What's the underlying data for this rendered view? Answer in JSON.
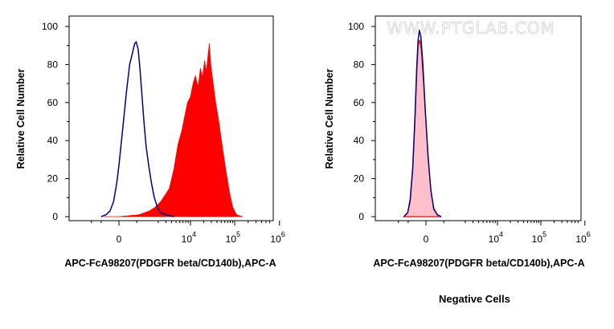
{
  "watermark": "WWW.PTGLAB.COM",
  "caption": "Negative Cells",
  "colors": {
    "stained_fill": "#ff0000",
    "control_line": "#000080",
    "negative_fill": "#ffc0cb",
    "negative_line": "#ff0000"
  },
  "chart_data": [
    {
      "type": "area",
      "xlabel": "APC-FcA98207(PDGFR beta/CD140b),APC-A",
      "ylabel": "Relative Cell Number",
      "x_scale": "logicle",
      "x_ticks": [
        {
          "value": 0,
          "base": "0",
          "exp": ""
        },
        {
          "value": 10000,
          "base": "10",
          "exp": "4"
        },
        {
          "value": 100000,
          "base": "10",
          "exp": "5"
        },
        {
          "value": 1000000,
          "base": "10",
          "exp": "6"
        }
      ],
      "y_ticks": [
        0,
        20,
        40,
        60,
        80,
        100
      ],
      "ylim": [
        0,
        100
      ],
      "series": [
        {
          "style": "filled",
          "color": "#ff0000",
          "points": [
            [
              -400,
              0
            ],
            [
              0,
              0
            ],
            [
              600,
              1
            ],
            [
              1200,
              3
            ],
            [
              1700,
              5
            ],
            [
              2300,
              8
            ],
            [
              3000,
              12
            ],
            [
              3600,
              15
            ],
            [
              4500,
              25
            ],
            [
              5500,
              38
            ],
            [
              6600,
              45
            ],
            [
              7500,
              52
            ],
            [
              8700,
              60
            ],
            [
              10000,
              63
            ],
            [
              11500,
              70
            ],
            [
              13000,
              74
            ],
            [
              15000,
              68
            ],
            [
              17000,
              78
            ],
            [
              19000,
              73
            ],
            [
              21000,
              82
            ],
            [
              23000,
              76
            ],
            [
              25000,
              84
            ],
            [
              27000,
              91
            ],
            [
              29000,
              80
            ],
            [
              32000,
              72
            ],
            [
              37000,
              61
            ],
            [
              44000,
              50
            ],
            [
              52000,
              38
            ],
            [
              63000,
              25
            ],
            [
              76000,
              13
            ],
            [
              90000,
              5
            ],
            [
              110000,
              1
            ],
            [
              150000,
              0
            ]
          ]
        },
        {
          "style": "line",
          "color": "#000080",
          "points": [
            [
              -500,
              0
            ],
            [
              -320,
              1
            ],
            [
              -200,
              3
            ],
            [
              -110,
              8
            ],
            [
              -40,
              18
            ],
            [
              0,
              27
            ],
            [
              70,
              45
            ],
            [
              160,
              65
            ],
            [
              250,
              80
            ],
            [
              340,
              86
            ],
            [
              420,
              91
            ],
            [
              480,
              92
            ],
            [
              560,
              88
            ],
            [
              640,
              78
            ],
            [
              740,
              64
            ],
            [
              850,
              50
            ],
            [
              980,
              37
            ],
            [
              1150,
              27
            ],
            [
              1350,
              18
            ],
            [
              1600,
              10
            ],
            [
              1900,
              5
            ],
            [
              2300,
              2
            ],
            [
              3000,
              1
            ],
            [
              4500,
              0
            ]
          ]
        }
      ]
    },
    {
      "type": "area",
      "xlabel": "APC-FcA98207(PDGFR beta/CD140b),APC-A",
      "ylabel": "Relative Cell Number",
      "x_scale": "logicle",
      "x_ticks": [
        {
          "value": 0,
          "base": "0",
          "exp": ""
        },
        {
          "value": 10000,
          "base": "10",
          "exp": "4"
        },
        {
          "value": 100000,
          "base": "10",
          "exp": "5"
        },
        {
          "value": 1000000,
          "base": "10",
          "exp": "6"
        }
      ],
      "y_ticks": [
        0,
        20,
        40,
        60,
        80,
        100
      ],
      "ylim": [
        0,
        100
      ],
      "series": [
        {
          "style": "filled",
          "color": "#ff0000",
          "fill": "#ffc0cb",
          "points": [
            [
              -700,
              0
            ],
            [
              -520,
              2
            ],
            [
              -420,
              8
            ],
            [
              -330,
              25
            ],
            [
              -260,
              50
            ],
            [
              -210,
              75
            ],
            [
              -170,
              90
            ],
            [
              -135,
              93
            ],
            [
              -95,
              88
            ],
            [
              -50,
              72
            ],
            [
              0,
              50
            ],
            [
              50,
              28
            ],
            [
              110,
              12
            ],
            [
              180,
              4
            ],
            [
              280,
              1
            ],
            [
              400,
              0
            ]
          ]
        },
        {
          "style": "line",
          "color": "#000080",
          "points": [
            [
              -700,
              0
            ],
            [
              -520,
              2
            ],
            [
              -420,
              9
            ],
            [
              -330,
              26
            ],
            [
              -260,
              52
            ],
            [
              -210,
              78
            ],
            [
              -170,
              93
            ],
            [
              -140,
              98
            ],
            [
              -105,
              95
            ],
            [
              -60,
              80
            ],
            [
              -10,
              55
            ],
            [
              40,
              32
            ],
            [
              100,
              14
            ],
            [
              170,
              4
            ],
            [
              270,
              1
            ],
            [
              400,
              0
            ]
          ]
        }
      ]
    }
  ]
}
